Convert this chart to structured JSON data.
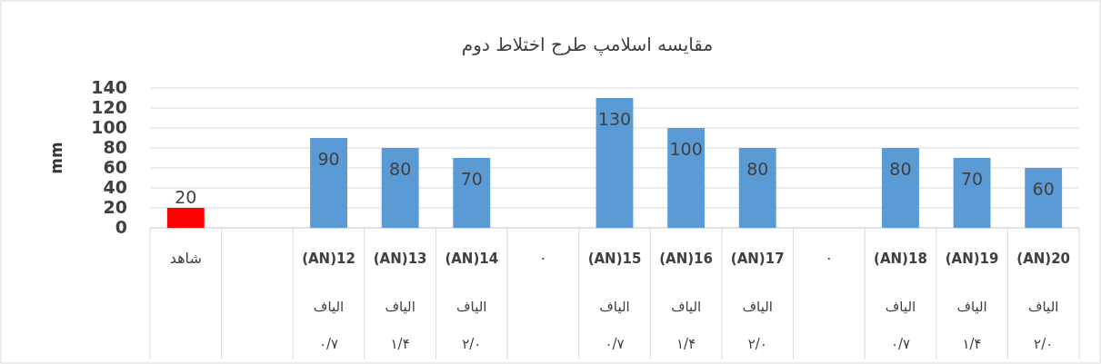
{
  "chart_data": {
    "type": "bar",
    "title": "مقایسه اسلامپ طرح اختلاط دوم",
    "ylabel": "mm",
    "categories": [
      "شاهد",
      null,
      "(AN)12\nالیاف\n۰/۷",
      "(AN)13\nالیاف\n۱/۴",
      "(AN)14\nالیاف\n۲/۰",
      "۰",
      "(AN)15\nالیاف\n۰/۷",
      "(AN)16\nالیاف\n۱/۴",
      "(AN)17\nالیاف\n۲/۰",
      "۰",
      "(AN)18\nالیاف\n۰/۷",
      "(AN)19\nالیاف\n۱/۴",
      "(AN)20\nالیاف\n۲/۰"
    ],
    "values": [
      20,
      null,
      90,
      80,
      70,
      null,
      130,
      100,
      80,
      null,
      80,
      70,
      60
    ],
    "colors": [
      "#ff0000",
      null,
      "#5b9bd5",
      "#5b9bd5",
      "#5b9bd5",
      null,
      "#5b9bd5",
      "#5b9bd5",
      "#5b9bd5",
      null,
      "#5b9bd5",
      "#5b9bd5",
      "#5b9bd5"
    ],
    "ylim": [
      0,
      140
    ],
    "yticks": [
      0,
      20,
      40,
      60,
      80,
      100,
      120,
      140
    ],
    "grid": "y",
    "data_labels": true
  }
}
